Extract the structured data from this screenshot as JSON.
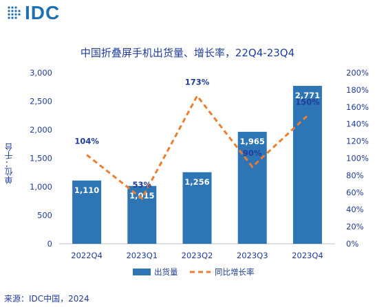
{
  "header": {
    "logo_text": "IDC"
  },
  "chart_data": {
    "type": "bar",
    "title": "中国折叠屏手机出货量、增长率，22Q4-23Q4",
    "ylabel": "单位：千台",
    "xlabel": "",
    "categories": [
      "2022Q4",
      "2023Q1",
      "2023Q2",
      "2023Q3",
      "2023Q4"
    ],
    "series": [
      {
        "name": "出货量",
        "type": "bar",
        "axis": "left",
        "values": [
          1110,
          1015,
          1256,
          1965,
          2771
        ],
        "labels": [
          "1,110",
          "1,015",
          "1,256",
          "1,965",
          "2,771"
        ]
      },
      {
        "name": "同比增长率",
        "type": "line",
        "axis": "right",
        "style": "dashed",
        "values": [
          104,
          53,
          173,
          90,
          150
        ],
        "labels": [
          "104%",
          "53%",
          "173%",
          "90%",
          "150%"
        ]
      }
    ],
    "ylim": [
      0,
      3000
    ],
    "yticks": [
      "0",
      "500",
      "1,000",
      "1,500",
      "2,000",
      "2,500",
      "3,000"
    ],
    "y2lim": [
      0,
      200
    ],
    "y2ticks": [
      "0%",
      "20%",
      "40%",
      "60%",
      "80%",
      "100%",
      "120%",
      "140%",
      "160%",
      "180%",
      "200%"
    ],
    "legend_position": "bottom",
    "grid": false,
    "colors": {
      "bar": "#2e75b6",
      "line": "#ed7d31",
      "text": "#1f3d99",
      "axis": "#bfbfbf"
    }
  },
  "footer": {
    "source": "来源：IDC中国，2024"
  }
}
